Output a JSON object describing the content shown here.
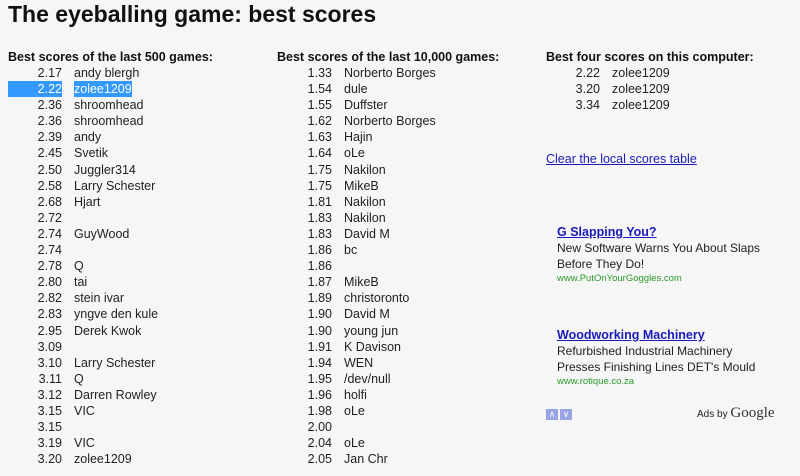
{
  "title": "The eyeballing game: best scores",
  "last500": {
    "header": "Best scores of the last 500 games:",
    "rows": [
      {
        "score": "2.17",
        "name": "andy blergh"
      },
      {
        "score": "2.22",
        "name": "zolee1209",
        "selected": true
      },
      {
        "score": "2.36",
        "name": "shroomhead"
      },
      {
        "score": "2.36",
        "name": "shroomhead"
      },
      {
        "score": "2.39",
        "name": "andy"
      },
      {
        "score": "2.45",
        "name": "Svetik"
      },
      {
        "score": "2.50",
        "name": "Juggler314"
      },
      {
        "score": "2.58",
        "name": "Larry Schester"
      },
      {
        "score": "2.68",
        "name": "Hjart"
      },
      {
        "score": "2.72",
        "name": ""
      },
      {
        "score": "2.74",
        "name": "GuyWood"
      },
      {
        "score": "2.74",
        "name": ""
      },
      {
        "score": "2.78",
        "name": "Q"
      },
      {
        "score": "2.80",
        "name": "tai"
      },
      {
        "score": "2.82",
        "name": "stein ivar"
      },
      {
        "score": "2.83",
        "name": "yngve den kule"
      },
      {
        "score": "2.95",
        "name": "Derek Kwok"
      },
      {
        "score": "3.09",
        "name": ""
      },
      {
        "score": "3.10",
        "name": "Larry Schester"
      },
      {
        "score": "3.11",
        "name": "Q"
      },
      {
        "score": "3.12",
        "name": "Darren Rowley"
      },
      {
        "score": "3.15",
        "name": "VIC"
      },
      {
        "score": "3.15",
        "name": ""
      },
      {
        "score": "3.19",
        "name": "VIC"
      },
      {
        "score": "3.20",
        "name": "zolee1209"
      }
    ]
  },
  "last10000": {
    "header": "Best scores of the last 10,000 games:",
    "rows": [
      {
        "score": "1.33",
        "name": "Norberto Borges"
      },
      {
        "score": "1.54",
        "name": "dule"
      },
      {
        "score": "1.55",
        "name": "Duffster"
      },
      {
        "score": "1.62",
        "name": "Norberto Borges"
      },
      {
        "score": "1.63",
        "name": "Hajin"
      },
      {
        "score": "1.64",
        "name": "oLe"
      },
      {
        "score": "1.75",
        "name": "Nakilon"
      },
      {
        "score": "1.75",
        "name": "MikeB"
      },
      {
        "score": "1.81",
        "name": "Nakilon"
      },
      {
        "score": "1.83",
        "name": "Nakilon"
      },
      {
        "score": "1.83",
        "name": "David M"
      },
      {
        "score": "1.86",
        "name": "bc"
      },
      {
        "score": "1.86",
        "name": ""
      },
      {
        "score": "1.87",
        "name": "MikeB"
      },
      {
        "score": "1.89",
        "name": "christoronto"
      },
      {
        "score": "1.90",
        "name": "David M"
      },
      {
        "score": "1.90",
        "name": "young jun"
      },
      {
        "score": "1.91",
        "name": "K Davison"
      },
      {
        "score": "1.94",
        "name": "WEN"
      },
      {
        "score": "1.95",
        "name": "/dev/null"
      },
      {
        "score": "1.96",
        "name": "holfi"
      },
      {
        "score": "1.98",
        "name": "oLe"
      },
      {
        "score": "2.00",
        "name": ""
      },
      {
        "score": "2.04",
        "name": "oLe"
      },
      {
        "score": "2.05",
        "name": "Jan Chr"
      }
    ]
  },
  "local": {
    "header": "Best four scores on this computer:",
    "rows": [
      {
        "score": "2.22",
        "name": "zolee1209"
      },
      {
        "score": "3.20",
        "name": "zolee1209"
      },
      {
        "score": "3.34",
        "name": "zolee1209"
      }
    ],
    "clear_link": "Clear the local scores table"
  },
  "ads": [
    {
      "title": "G Slapping You?",
      "lines": [
        "New Software Warns You About Slaps",
        "Before They Do!"
      ],
      "url": "www.PutOnYourGoggles.com"
    },
    {
      "title": "Woodworking Machinery",
      "lines": [
        "Refurbished Industrial Machinery",
        "Presses Finishing Lines DET's Mould"
      ],
      "url": "www.rotique.co.za"
    }
  ],
  "ad_nav": {
    "prev": "∧",
    "next": "∨"
  },
  "ads_by": {
    "prefix": "Ads by",
    "brand": "Google"
  },
  "colors": {
    "link": "#1a1ab8",
    "ad_url": "#2a9a2a",
    "selection": "#3399ff"
  }
}
